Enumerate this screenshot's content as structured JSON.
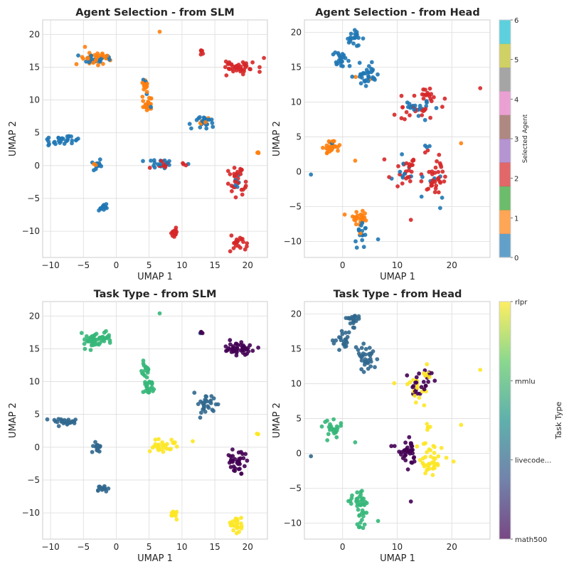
{
  "chart_data": [
    {
      "type": "scatter",
      "title": "Agent Selection - from SLM",
      "xlabel": "UMAP 1",
      "ylabel": "UMAP 2",
      "xlim": [
        -11.2,
        23
      ],
      "ylim": [
        -14,
        22.2
      ],
      "xticks": [
        -10,
        -5,
        0,
        5,
        10,
        15,
        20
      ],
      "yticks": [
        -10,
        -5,
        0,
        5,
        10,
        15,
        20
      ],
      "grid": true,
      "clusters": [
        {
          "cx": -3.3,
          "cy": 16.3,
          "sx": 0.9,
          "sy": 0.6,
          "n": 45,
          "mix": {
            "1": 0.7,
            "0": 0.3
          }
        },
        {
          "cx": -1.3,
          "cy": 16.4,
          "sx": 0.6,
          "sy": 0.25,
          "n": 10,
          "mix": {
            "1": 0.5,
            "0": 0.5
          }
        },
        {
          "cx": 6.6,
          "cy": 20.4,
          "sx": 0.05,
          "sy": 0.05,
          "n": 1,
          "mix": {
            "1": 1
          }
        },
        {
          "cx": 13.0,
          "cy": 17.4,
          "sx": 0.15,
          "sy": 0.2,
          "n": 5,
          "mix": {
            "2": 1
          }
        },
        {
          "cx": 18.7,
          "cy": 15.0,
          "sx": 1.3,
          "sy": 0.6,
          "n": 45,
          "mix": {
            "2": 1
          }
        },
        {
          "cx": 4.4,
          "cy": 12.0,
          "sx": 0.35,
          "sy": 0.7,
          "n": 18,
          "mix": {
            "1": 0.6,
            "0": 0.4
          }
        },
        {
          "cx": 4.9,
          "cy": 9.4,
          "sx": 0.4,
          "sy": 0.6,
          "n": 22,
          "mix": {
            "1": 0.9,
            "0": 0.1
          }
        },
        {
          "cx": 13.5,
          "cy": 6.7,
          "sx": 0.9,
          "sy": 0.7,
          "n": 30,
          "mix": {
            "0": 0.9,
            "1": 0.1
          }
        },
        {
          "cx": -7.9,
          "cy": 3.9,
          "sx": 1.1,
          "sy": 0.3,
          "n": 28,
          "mix": {
            "0": 1
          }
        },
        {
          "cx": 21.5,
          "cy": 2.0,
          "sx": 0.1,
          "sy": 0.1,
          "n": 3,
          "mix": {
            "1": 1
          }
        },
        {
          "cx": -3.0,
          "cy": 0.0,
          "sx": 0.4,
          "sy": 0.4,
          "n": 14,
          "mix": {
            "0": 0.7,
            "1": 0.3
          }
        },
        {
          "cx": 7.3,
          "cy": 0.2,
          "sx": 1.4,
          "sy": 0.5,
          "n": 30,
          "mix": {
            "2": 0.55,
            "0": 0.45
          }
        },
        {
          "cx": 18.5,
          "cy": -2.2,
          "sx": 0.7,
          "sy": 1.2,
          "n": 35,
          "mix": {
            "2": 0.8,
            "0": 0.2
          }
        },
        {
          "cx": -2.0,
          "cy": -6.3,
          "sx": 0.4,
          "sy": 0.3,
          "n": 16,
          "mix": {
            "0": 1
          }
        },
        {
          "cx": 8.8,
          "cy": -10.2,
          "sx": 0.25,
          "sy": 0.4,
          "n": 14,
          "mix": {
            "2": 1
          }
        },
        {
          "cx": 18.5,
          "cy": -11.8,
          "sx": 0.5,
          "sy": 0.6,
          "n": 22,
          "mix": {
            "2": 0.9,
            "0": 0.1
          }
        }
      ]
    },
    {
      "type": "scatter",
      "title": "Agent Selection - from Head",
      "xlabel": "UMAP 1",
      "ylabel": "UMAP 2",
      "xlim": [
        -7,
        27
      ],
      "ylim": [
        -12.3,
        21.8
      ],
      "xticks": [
        0,
        10,
        20
      ],
      "yticks": [
        -10,
        -5,
        0,
        5,
        10,
        15,
        20
      ],
      "grid": true,
      "clusters": [
        {
          "cx": 2.0,
          "cy": 19.2,
          "sx": 0.5,
          "sy": 0.5,
          "n": 20,
          "mix": {
            "0": 1
          }
        },
        {
          "cx": -0.4,
          "cy": 16.3,
          "sx": 0.8,
          "sy": 0.7,
          "n": 22,
          "mix": {
            "0": 1
          }
        },
        {
          "cx": 4.5,
          "cy": 13.8,
          "sx": 1.0,
          "sy": 0.9,
          "n": 35,
          "mix": {
            "0": 0.95,
            "1": 0.05
          }
        },
        {
          "cx": 13.6,
          "cy": 9.3,
          "sx": 1.7,
          "sy": 0.9,
          "n": 40,
          "mix": {
            "2": 0.55,
            "0": 0.45
          }
        },
        {
          "cx": 15.5,
          "cy": 11.2,
          "sx": 0.6,
          "sy": 0.6,
          "n": 14,
          "mix": {
            "2": 1
          }
        },
        {
          "cx": 25.2,
          "cy": 12.0,
          "sx": 0.05,
          "sy": 0.05,
          "n": 1,
          "mix": {
            "2": 1
          }
        },
        {
          "cx": -1.8,
          "cy": 3.5,
          "sx": 0.9,
          "sy": 0.6,
          "n": 26,
          "mix": {
            "1": 0.85,
            "0": 0.15
          }
        },
        {
          "cx": 2.3,
          "cy": 1.6,
          "sx": 0.05,
          "sy": 0.05,
          "n": 1,
          "mix": {
            "1": 1
          }
        },
        {
          "cx": 21.7,
          "cy": 4.1,
          "sx": 0.05,
          "sy": 0.05,
          "n": 1,
          "mix": {
            "1": 1
          }
        },
        {
          "cx": -5.8,
          "cy": -0.4,
          "sx": 0.05,
          "sy": 0.05,
          "n": 1,
          "mix": {
            "0": 1
          }
        },
        {
          "cx": 11.5,
          "cy": -0.2,
          "sx": 1.0,
          "sy": 0.9,
          "n": 28,
          "mix": {
            "2": 0.8,
            "0": 0.2
          }
        },
        {
          "cx": 16.5,
          "cy": -1.0,
          "sx": 1.0,
          "sy": 1.4,
          "n": 40,
          "mix": {
            "2": 0.85,
            "0": 0.15
          }
        },
        {
          "cx": 12.7,
          "cy": 1.3,
          "sx": 0.3,
          "sy": 0.5,
          "n": 6,
          "mix": {
            "2": 1
          }
        },
        {
          "cx": 15.6,
          "cy": 3.5,
          "sx": 0.3,
          "sy": 0.4,
          "n": 5,
          "mix": {
            "0": 0.7,
            "2": 0.3
          }
        },
        {
          "cx": 3.0,
          "cy": -6.7,
          "sx": 0.9,
          "sy": 0.5,
          "n": 24,
          "mix": {
            "1": 1
          }
        },
        {
          "cx": 3.4,
          "cy": -8.8,
          "sx": 0.5,
          "sy": 0.9,
          "n": 18,
          "mix": {
            "0": 0.9,
            "1": 0.1
          }
        },
        {
          "cx": 6.5,
          "cy": -9.7,
          "sx": 0.05,
          "sy": 0.05,
          "n": 1,
          "mix": {
            "0": 1
          }
        },
        {
          "cx": 12.5,
          "cy": -6.9,
          "sx": 0.05,
          "sy": 0.05,
          "n": 1,
          "mix": {
            "2": 1
          }
        }
      ]
    },
    {
      "type": "scatter",
      "title": "Task Type - from SLM",
      "xlabel": "UMAP 1",
      "ylabel": "UMAP 2",
      "xlim": [
        -11.2,
        23
      ],
      "ylim": [
        -14,
        22.2
      ],
      "xticks": [
        -10,
        -5,
        0,
        5,
        10,
        15,
        20
      ],
      "yticks": [
        -10,
        -5,
        0,
        5,
        10,
        15,
        20
      ],
      "grid": true,
      "clusters": [
        {
          "cx": -3.2,
          "cy": 16.3,
          "sx": 1.0,
          "sy": 0.6,
          "n": 55,
          "mix": {
            "mmlu": 1
          }
        },
        {
          "cx": 6.6,
          "cy": 20.4,
          "sx": 0.05,
          "sy": 0.05,
          "n": 1,
          "mix": {
            "mmlu": 1
          }
        },
        {
          "cx": 13.0,
          "cy": 17.4,
          "sx": 0.15,
          "sy": 0.2,
          "n": 5,
          "mix": {
            "livecode": 0.5,
            "math500": 0.5
          }
        },
        {
          "cx": 18.7,
          "cy": 15.0,
          "sx": 1.3,
          "sy": 0.6,
          "n": 45,
          "mix": {
            "math500": 1
          }
        },
        {
          "cx": 4.4,
          "cy": 12.0,
          "sx": 0.35,
          "sy": 0.7,
          "n": 18,
          "mix": {
            "mmlu": 1
          }
        },
        {
          "cx": 4.9,
          "cy": 9.4,
          "sx": 0.4,
          "sy": 0.6,
          "n": 22,
          "mix": {
            "mmlu": 1
          }
        },
        {
          "cx": 13.5,
          "cy": 6.7,
          "sx": 0.9,
          "sy": 0.7,
          "n": 30,
          "mix": {
            "livecode": 1
          }
        },
        {
          "cx": -7.9,
          "cy": 3.9,
          "sx": 1.1,
          "sy": 0.3,
          "n": 28,
          "mix": {
            "livecode": 1
          }
        },
        {
          "cx": 21.5,
          "cy": 2.0,
          "sx": 0.1,
          "sy": 0.1,
          "n": 3,
          "mix": {
            "rlpr": 1
          }
        },
        {
          "cx": -3.0,
          "cy": 0.0,
          "sx": 0.4,
          "sy": 0.4,
          "n": 14,
          "mix": {
            "livecode": 1
          }
        },
        {
          "cx": 7.3,
          "cy": 0.2,
          "sx": 1.4,
          "sy": 0.5,
          "n": 30,
          "mix": {
            "rlpr": 1
          }
        },
        {
          "cx": 18.5,
          "cy": -2.2,
          "sx": 0.7,
          "sy": 1.2,
          "n": 35,
          "mix": {
            "math500": 1
          }
        },
        {
          "cx": -2.0,
          "cy": -6.3,
          "sx": 0.4,
          "sy": 0.3,
          "n": 16,
          "mix": {
            "livecode": 1
          }
        },
        {
          "cx": 8.8,
          "cy": -10.2,
          "sx": 0.25,
          "sy": 0.4,
          "n": 14,
          "mix": {
            "rlpr": 1
          }
        },
        {
          "cx": 18.5,
          "cy": -11.8,
          "sx": 0.5,
          "sy": 0.6,
          "n": 22,
          "mix": {
            "rlpr": 1
          }
        }
      ]
    },
    {
      "type": "scatter",
      "title": "Task Type - from Head",
      "xlabel": "UMAP 1",
      "ylabel": "UMAP 2",
      "xlim": [
        -7,
        27
      ],
      "ylim": [
        -12.3,
        21.8
      ],
      "xticks": [
        0,
        10,
        20
      ],
      "yticks": [
        -10,
        -5,
        0,
        5,
        10,
        15,
        20
      ],
      "grid": true,
      "clusters": [
        {
          "cx": 2.0,
          "cy": 19.2,
          "sx": 0.5,
          "sy": 0.5,
          "n": 20,
          "mix": {
            "livecode": 1
          }
        },
        {
          "cx": -0.4,
          "cy": 16.3,
          "sx": 0.8,
          "sy": 0.7,
          "n": 22,
          "mix": {
            "livecode": 1
          }
        },
        {
          "cx": 4.5,
          "cy": 13.8,
          "sx": 1.0,
          "sy": 0.9,
          "n": 35,
          "mix": {
            "livecode": 1
          }
        },
        {
          "cx": 13.6,
          "cy": 9.3,
          "sx": 1.7,
          "sy": 0.9,
          "n": 40,
          "mix": {
            "rlpr": 0.6,
            "math500": 0.4
          }
        },
        {
          "cx": 15.5,
          "cy": 11.2,
          "sx": 0.6,
          "sy": 0.6,
          "n": 14,
          "mix": {
            "math500": 0.7,
            "rlpr": 0.3
          }
        },
        {
          "cx": 25.2,
          "cy": 12.0,
          "sx": 0.05,
          "sy": 0.05,
          "n": 1,
          "mix": {
            "rlpr": 1
          }
        },
        {
          "cx": -1.8,
          "cy": 3.5,
          "sx": 0.9,
          "sy": 0.6,
          "n": 26,
          "mix": {
            "mmlu": 1
          }
        },
        {
          "cx": 2.3,
          "cy": 1.6,
          "sx": 0.05,
          "sy": 0.05,
          "n": 1,
          "mix": {
            "mmlu": 1
          }
        },
        {
          "cx": 21.7,
          "cy": 4.1,
          "sx": 0.05,
          "sy": 0.05,
          "n": 1,
          "mix": {
            "rlpr": 1
          }
        },
        {
          "cx": -5.8,
          "cy": -0.4,
          "sx": 0.05,
          "sy": 0.05,
          "n": 1,
          "mix": {
            "livecode": 1
          }
        },
        {
          "cx": 11.5,
          "cy": -0.2,
          "sx": 1.0,
          "sy": 0.9,
          "n": 28,
          "mix": {
            "math500": 1
          }
        },
        {
          "cx": 16.5,
          "cy": -1.0,
          "sx": 1.0,
          "sy": 1.4,
          "n": 40,
          "mix": {
            "rlpr": 1
          }
        },
        {
          "cx": 12.7,
          "cy": 1.3,
          "sx": 0.3,
          "sy": 0.5,
          "n": 6,
          "mix": {
            "math500": 1
          }
        },
        {
          "cx": 15.6,
          "cy": 3.5,
          "sx": 0.3,
          "sy": 0.4,
          "n": 5,
          "mix": {
            "rlpr": 1
          }
        },
        {
          "cx": 3.0,
          "cy": -6.7,
          "sx": 0.9,
          "sy": 0.5,
          "n": 24,
          "mix": {
            "mmlu": 1
          }
        },
        {
          "cx": 3.4,
          "cy": -8.8,
          "sx": 0.5,
          "sy": 0.9,
          "n": 18,
          "mix": {
            "mmlu": 1
          }
        },
        {
          "cx": 6.5,
          "cy": -9.7,
          "sx": 0.05,
          "sy": 0.05,
          "n": 1,
          "mix": {
            "mmlu": 1
          }
        },
        {
          "cx": 12.5,
          "cy": -6.9,
          "sx": 0.05,
          "sy": 0.05,
          "n": 1,
          "mix": {
            "math500": 1
          }
        }
      ]
    }
  ],
  "colorbars": {
    "agent": {
      "label": "Selected Agent",
      "ticks": [
        "0",
        "1",
        "2",
        "3",
        "4",
        "5",
        "6"
      ],
      "colors": [
        "#1f77b4",
        "#ff7f0e",
        "#2ca02c",
        "#d62728",
        "#9467bd",
        "#8c564b",
        "#e377c2",
        "#7f7f7f",
        "#bcbd22",
        "#17becf"
      ],
      "point_colors": {
        "0": "#1f77b4",
        "1": "#ff7f0e",
        "2": "#d62728"
      }
    },
    "task": {
      "label": "Task Type",
      "ticks": [
        "math500",
        "livecode...",
        "mmlu",
        "rlpr"
      ],
      "colors": {
        "math500": "#440154",
        "livecode": "#31688e",
        "mmlu": "#35b779",
        "rlpr": "#fde725"
      }
    }
  }
}
